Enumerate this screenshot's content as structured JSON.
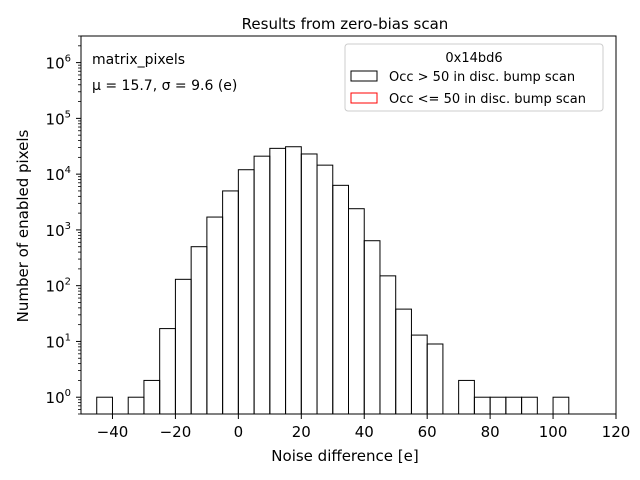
{
  "chart_data": {
    "type": "histogram",
    "title": "Results from zero-bias scan",
    "xlabel": "Noise difference [e]",
    "ylabel": "Number of enabled pixels",
    "xlim": [
      -50,
      120
    ],
    "ylim": [
      0.5,
      3000000
    ],
    "y_scale": "log",
    "grid": false,
    "x_ticks": [
      -40,
      -20,
      0,
      20,
      40,
      60,
      80,
      100,
      120
    ],
    "x_tick_labels": [
      "−40",
      "−20",
      "0",
      "20",
      "40",
      "60",
      "80",
      "100",
      "120"
    ],
    "y_ticks": [
      1,
      10,
      100,
      1000,
      10000,
      100000,
      1000000
    ],
    "y_tick_labels": [
      {
        "base": "10",
        "exp": "0"
      },
      {
        "base": "10",
        "exp": "1"
      },
      {
        "base": "10",
        "exp": "2"
      },
      {
        "base": "10",
        "exp": "3"
      },
      {
        "base": "10",
        "exp": "4"
      },
      {
        "base": "10",
        "exp": "5"
      },
      {
        "base": "10",
        "exp": "6"
      }
    ],
    "annotations": [
      "matrix_pixels",
      "μ = 15.7, σ = 9.6 (e)"
    ],
    "legend": {
      "position": "top-right",
      "title": "0x14bd6",
      "entries": [
        {
          "label": "Occ > 50 in disc. bump scan",
          "color": "#000000"
        },
        {
          "label": "Occ <= 50 in disc. bump scan",
          "color": "#ff0000"
        }
      ]
    },
    "series": [
      {
        "name": "Occ > 50 in disc. bump scan",
        "color": "#000000",
        "bins": [
          {
            "x0": -45,
            "x1": -40,
            "count": 1
          },
          {
            "x0": -40,
            "x1": -35,
            "count": 0
          },
          {
            "x0": -35,
            "x1": -30,
            "count": 1
          },
          {
            "x0": -30,
            "x1": -25,
            "count": 2
          },
          {
            "x0": -25,
            "x1": -20,
            "count": 17
          },
          {
            "x0": -20,
            "x1": -15,
            "count": 130
          },
          {
            "x0": -15,
            "x1": -10,
            "count": 500
          },
          {
            "x0": -10,
            "x1": -5,
            "count": 1700
          },
          {
            "x0": -5,
            "x1": 0,
            "count": 5000
          },
          {
            "x0": 0,
            "x1": 5,
            "count": 12000
          },
          {
            "x0": 5,
            "x1": 10,
            "count": 21000
          },
          {
            "x0": 10,
            "x1": 15,
            "count": 29000
          },
          {
            "x0": 15,
            "x1": 20,
            "count": 31000
          },
          {
            "x0": 20,
            "x1": 25,
            "count": 23000
          },
          {
            "x0": 25,
            "x1": 30,
            "count": 14500
          },
          {
            "x0": 30,
            "x1": 35,
            "count": 6300
          },
          {
            "x0": 35,
            "x1": 40,
            "count": 2400
          },
          {
            "x0": 40,
            "x1": 45,
            "count": 640
          },
          {
            "x0": 45,
            "x1": 50,
            "count": 150
          },
          {
            "x0": 50,
            "x1": 55,
            "count": 38
          },
          {
            "x0": 55,
            "x1": 60,
            "count": 13
          },
          {
            "x0": 60,
            "x1": 65,
            "count": 9
          },
          {
            "x0": 65,
            "x1": 70,
            "count": 0
          },
          {
            "x0": 70,
            "x1": 75,
            "count": 2
          },
          {
            "x0": 75,
            "x1": 80,
            "count": 1
          },
          {
            "x0": 80,
            "x1": 85,
            "count": 1
          },
          {
            "x0": 85,
            "x1": 90,
            "count": 1
          },
          {
            "x0": 90,
            "x1": 95,
            "count": 1
          },
          {
            "x0": 95,
            "x1": 100,
            "count": 0
          },
          {
            "x0": 100,
            "x1": 105,
            "count": 1
          }
        ]
      },
      {
        "name": "Occ <= 50 in disc. bump scan",
        "color": "#ff0000",
        "bins": []
      }
    ]
  }
}
